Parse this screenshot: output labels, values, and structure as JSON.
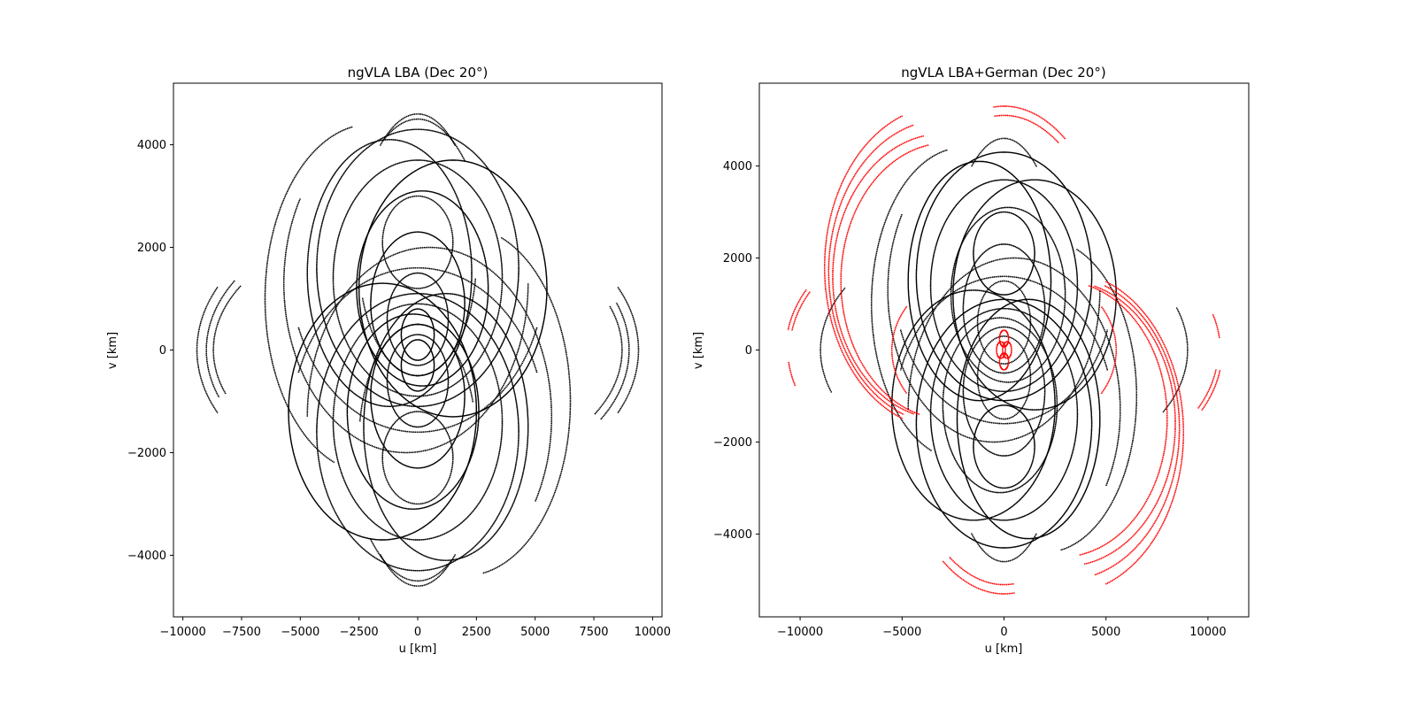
{
  "chart_data": [
    {
      "type": "scatter",
      "title": "ngVLA LBA (Dec 20°)",
      "xlabel": "u [km]",
      "ylabel": "v [km]",
      "xlim": [
        -10400,
        10400
      ],
      "ylim": [
        -5200,
        5200
      ],
      "xticks": [
        -10000,
        -7500,
        -5000,
        -2500,
        0,
        2500,
        5000,
        7500,
        10000
      ],
      "xtick_labels": [
        "−10000",
        "−7500",
        "−5000",
        "−2500",
        "0",
        "2500",
        "5000",
        "7500",
        "10000"
      ],
      "yticks": [
        -4000,
        -2000,
        0,
        2000,
        4000
      ],
      "ytick_labels": [
        "−4000",
        "−2000",
        "0",
        "2000",
        "4000"
      ],
      "grid": false,
      "series": [
        {
          "color": "#000000",
          "tracks": [
            {
              "cx": 0,
              "cy": 1500,
              "a": 5400,
              "b": 3100,
              "t0": 200,
              "t1": 340
            },
            {
              "cx": 0,
              "cy": -1500,
              "a": 5400,
              "b": 3100,
              "t0": 20,
              "t1": 160
            },
            {
              "cx": -500,
              "cy": 1300,
              "a": 5200,
              "b": 3300,
              "t0": 150,
              "t1": 360
            },
            {
              "cx": 500,
              "cy": -1300,
              "a": 5200,
              "b": 3300,
              "t0": -30,
              "t1": 180
            },
            {
              "cx": 0,
              "cy": 1600,
              "a": 4300,
              "b": 2700,
              "t0": 0,
              "t1": 360
            },
            {
              "cx": 0,
              "cy": -1600,
              "a": 4300,
              "b": 2700,
              "t0": 0,
              "t1": 360
            },
            {
              "cx": 0,
              "cy": 1400,
              "a": 3600,
              "b": 2300,
              "t0": 0,
              "t1": 360
            },
            {
              "cx": 0,
              "cy": -1400,
              "a": 3600,
              "b": 2300,
              "t0": 0,
              "t1": 360
            },
            {
              "cx": 200,
              "cy": 1200,
              "a": 2800,
              "b": 1900,
              "t0": 0,
              "t1": 360
            },
            {
              "cx": -200,
              "cy": -1200,
              "a": 2800,
              "b": 1900,
              "t0": 0,
              "t1": 360
            },
            {
              "cx": 0,
              "cy": 900,
              "a": 2000,
              "b": 1400,
              "t0": 0,
              "t1": 360
            },
            {
              "cx": 0,
              "cy": -900,
              "a": 2000,
              "b": 1400,
              "t0": 0,
              "t1": 360
            },
            {
              "cx": 0,
              "cy": 600,
              "a": 1300,
              "b": 900,
              "t0": 0,
              "t1": 360
            },
            {
              "cx": 0,
              "cy": -600,
              "a": 1300,
              "b": 900,
              "t0": 0,
              "t1": 360
            },
            {
              "cx": 0,
              "cy": 300,
              "a": 700,
              "b": 500,
              "t0": 0,
              "t1": 360
            },
            {
              "cx": 0,
              "cy": -300,
              "a": 700,
              "b": 500,
              "t0": 0,
              "t1": 360
            },
            {
              "cx": 1500,
              "cy": 1200,
              "a": 4000,
              "b": 2500,
              "t0": 0,
              "t1": 360
            },
            {
              "cx": -1500,
              "cy": -1200,
              "a": 4000,
              "b": 2500,
              "t0": 0,
              "t1": 360
            },
            {
              "cx": -1200,
              "cy": 1500,
              "a": 3500,
              "b": 2600,
              "t0": 0,
              "t1": 360
            },
            {
              "cx": 1200,
              "cy": -1500,
              "a": 3500,
              "b": 2600,
              "t0": 0,
              "t1": 360
            },
            {
              "cx": 0,
              "cy": 2100,
              "a": 1500,
              "b": 900,
              "t0": 0,
              "t1": 360
            },
            {
              "cx": 0,
              "cy": -2100,
              "a": 1500,
              "b": 900,
              "t0": 0,
              "t1": 360
            },
            {
              "cx": 0,
              "cy": 0,
              "a": 9000,
              "b": 2700,
              "t0": 150,
              "t1": 200
            },
            {
              "cx": 0,
              "cy": 0,
              "a": 9000,
              "b": 2700,
              "t0": -30,
              "t1": 20
            },
            {
              "cx": 0,
              "cy": 0,
              "a": 8700,
              "b": 2500,
              "t0": 150,
              "t1": 200
            },
            {
              "cx": 0,
              "cy": 0,
              "a": 8700,
              "b": 2500,
              "t0": -30,
              "t1": 20
            },
            {
              "cx": 0,
              "cy": 0,
              "a": 9400,
              "b": 2900,
              "t0": 155,
              "t1": 205
            },
            {
              "cx": 0,
              "cy": 0,
              "a": 9400,
              "b": 2900,
              "t0": -25,
              "t1": 25
            },
            {
              "cx": 0,
              "cy": 0,
              "a": 3200,
              "b": 4600,
              "t0": 60,
              "t1": 120
            },
            {
              "cx": 0,
              "cy": 0,
              "a": 3200,
              "b": 4600,
              "t0": 240,
              "t1": 300
            },
            {
              "cx": 0,
              "cy": 0,
              "a": 3500,
              "b": 4500,
              "t0": 55,
              "t1": 115
            },
            {
              "cx": 0,
              "cy": 0,
              "a": 3500,
              "b": 4500,
              "t0": 235,
              "t1": 295
            },
            {
              "cx": -2000,
              "cy": 1000,
              "a": 4500,
              "b": 3400,
              "t0": 100,
              "t1": 250
            },
            {
              "cx": 2000,
              "cy": -1000,
              "a": 4500,
              "b": 3400,
              "t0": 280,
              "t1": 430
            },
            {
              "cx": 0,
              "cy": 1800,
              "a": 2500,
              "b": 2300,
              "t0": 200,
              "t1": 350
            },
            {
              "cx": 0,
              "cy": -1800,
              "a": 2500,
              "b": 2300,
              "t0": 20,
              "t1": 170
            }
          ]
        }
      ]
    },
    {
      "type": "scatter",
      "title": "ngVLA LBA+German (Dec 20°)",
      "xlabel": "u [km]",
      "ylabel": "v [km]",
      "xlim": [
        -12000,
        12000
      ],
      "ylim": [
        -5800,
        5800
      ],
      "xticks": [
        -10000,
        -5000,
        0,
        5000,
        10000
      ],
      "xtick_labels": [
        "−10000",
        "−5000",
        "0",
        "5000",
        "10000"
      ],
      "yticks": [
        -4000,
        -2000,
        0,
        2000,
        4000
      ],
      "ytick_labels": [
        "−4000",
        "−2000",
        "0",
        "2000",
        "4000"
      ],
      "grid": false,
      "series": [
        {
          "color": "#000000",
          "tracks": [
            {
              "cx": 0,
              "cy": 1500,
              "a": 5400,
              "b": 3100,
              "t0": 200,
              "t1": 340
            },
            {
              "cx": 0,
              "cy": -1500,
              "a": 5400,
              "b": 3100,
              "t0": 20,
              "t1": 160
            },
            {
              "cx": -500,
              "cy": 1300,
              "a": 5200,
              "b": 3300,
              "t0": 150,
              "t1": 360
            },
            {
              "cx": 500,
              "cy": -1300,
              "a": 5200,
              "b": 3300,
              "t0": -30,
              "t1": 180
            },
            {
              "cx": 0,
              "cy": 1600,
              "a": 4300,
              "b": 2700,
              "t0": 0,
              "t1": 360
            },
            {
              "cx": 0,
              "cy": -1600,
              "a": 4300,
              "b": 2700,
              "t0": 0,
              "t1": 360
            },
            {
              "cx": 0,
              "cy": 1400,
              "a": 3600,
              "b": 2300,
              "t0": 0,
              "t1": 360
            },
            {
              "cx": 0,
              "cy": -1400,
              "a": 3600,
              "b": 2300,
              "t0": 0,
              "t1": 360
            },
            {
              "cx": 200,
              "cy": 1200,
              "a": 2800,
              "b": 1900,
              "t0": 0,
              "t1": 360
            },
            {
              "cx": -200,
              "cy": -1200,
              "a": 2800,
              "b": 1900,
              "t0": 0,
              "t1": 360
            },
            {
              "cx": 0,
              "cy": 900,
              "a": 2000,
              "b": 1400,
              "t0": 0,
              "t1": 360
            },
            {
              "cx": 0,
              "cy": -900,
              "a": 2000,
              "b": 1400,
              "t0": 0,
              "t1": 360
            },
            {
              "cx": 0,
              "cy": 600,
              "a": 1300,
              "b": 900,
              "t0": 0,
              "t1": 360
            },
            {
              "cx": 0,
              "cy": -600,
              "a": 1300,
              "b": 900,
              "t0": 0,
              "t1": 360
            },
            {
              "cx": 1500,
              "cy": 1200,
              "a": 4000,
              "b": 2500,
              "t0": 0,
              "t1": 360
            },
            {
              "cx": -1500,
              "cy": -1200,
              "a": 4000,
              "b": 2500,
              "t0": 0,
              "t1": 360
            },
            {
              "cx": -1200,
              "cy": 1500,
              "a": 3500,
              "b": 2600,
              "t0": 0,
              "t1": 360
            },
            {
              "cx": 1200,
              "cy": -1500,
              "a": 3500,
              "b": 2600,
              "t0": 0,
              "t1": 360
            },
            {
              "cx": 0,
              "cy": 2100,
              "a": 1500,
              "b": 900,
              "t0": 0,
              "t1": 360
            },
            {
              "cx": 0,
              "cy": -2100,
              "a": 1500,
              "b": 900,
              "t0": 0,
              "t1": 360
            },
            {
              "cx": 0,
              "cy": 0,
              "a": 9000,
              "b": 2700,
              "t0": 150,
              "t1": 200
            },
            {
              "cx": 0,
              "cy": 0,
              "a": 9000,
              "b": 2700,
              "t0": -30,
              "t1": 20
            },
            {
              "cx": 0,
              "cy": 0,
              "a": 3200,
              "b": 4600,
              "t0": 60,
              "t1": 120
            },
            {
              "cx": 0,
              "cy": 0,
              "a": 3200,
              "b": 4600,
              "t0": 240,
              "t1": 300
            },
            {
              "cx": -2000,
              "cy": 1000,
              "a": 4500,
              "b": 3400,
              "t0": 100,
              "t1": 250
            },
            {
              "cx": 2000,
              "cy": -1000,
              "a": 4500,
              "b": 3400,
              "t0": 280,
              "t1": 430
            }
          ]
        },
        {
          "color": "#ff0000",
          "tracks": [
            {
              "cx": -3000,
              "cy": 1800,
              "a": 5800,
              "b": 3500,
              "t0": 110,
              "t1": 250
            },
            {
              "cx": -3000,
              "cy": 1700,
              "a": 5600,
              "b": 3300,
              "t0": 105,
              "t1": 250
            },
            {
              "cx": -3000,
              "cy": 1600,
              "a": 5400,
              "b": 3100,
              "t0": 100,
              "t1": 255
            },
            {
              "cx": -2800,
              "cy": 1500,
              "a": 5200,
              "b": 3000,
              "t0": 100,
              "t1": 255
            },
            {
              "cx": 3000,
              "cy": -1800,
              "a": 5800,
              "b": 3500,
              "t0": 290,
              "t1": 430
            },
            {
              "cx": 3000,
              "cy": -1700,
              "a": 5600,
              "b": 3300,
              "t0": 285,
              "t1": 430
            },
            {
              "cx": 3000,
              "cy": -1600,
              "a": 5400,
              "b": 3100,
              "t0": 280,
              "t1": 435
            },
            {
              "cx": 2800,
              "cy": -1500,
              "a": 5200,
              "b": 3000,
              "t0": 280,
              "t1": 435
            },
            {
              "cx": 0,
              "cy": 0,
              "a": 10700,
              "b": 3100,
              "t0": 155,
              "t1": 172
            },
            {
              "cx": 0,
              "cy": 0,
              "a": 10500,
              "b": 3000,
              "t0": 155,
              "t1": 172
            },
            {
              "cx": 0,
              "cy": 0,
              "a": 10700,
              "b": 3100,
              "t0": -25,
              "t1": -8
            },
            {
              "cx": 0,
              "cy": 0,
              "a": 10500,
              "b": 3000,
              "t0": -25,
              "t1": -8
            },
            {
              "cx": 0,
              "cy": 0,
              "a": 10600,
              "b": 3000,
              "t0": 5,
              "t1": 15
            },
            {
              "cx": 0,
              "cy": 0,
              "a": 10600,
              "b": 3000,
              "t0": 185,
              "t1": 195
            },
            {
              "cx": 0,
              "cy": 0,
              "a": 6000,
              "b": 5300,
              "t0": 60,
              "t1": 95
            },
            {
              "cx": 0,
              "cy": 0,
              "a": 6000,
              "b": 5300,
              "t0": 240,
              "t1": 275
            },
            {
              "cx": 0,
              "cy": 0,
              "a": 5700,
              "b": 5100,
              "t0": 62,
              "t1": 95
            },
            {
              "cx": 0,
              "cy": 0,
              "a": 5700,
              "b": 5100,
              "t0": 242,
              "t1": 275
            },
            {
              "cx": 0,
              "cy": 0,
              "a": 5500,
              "b": 1900,
              "t0": 150,
              "t1": 210
            },
            {
              "cx": 0,
              "cy": 0,
              "a": 5500,
              "b": 1900,
              "t0": -30,
              "t1": 30
            },
            {
              "cx": 0,
              "cy": 250,
              "a": 220,
              "b": 180,
              "t0": 0,
              "t1": 360
            },
            {
              "cx": 0,
              "cy": -250,
              "a": 220,
              "b": 180,
              "t0": 0,
              "t1": 360
            },
            {
              "cx": -150,
              "cy": 0,
              "a": 220,
              "b": 180,
              "t0": 0,
              "t1": 360
            },
            {
              "cx": 150,
              "cy": 0,
              "a": 220,
              "b": 180,
              "t0": 0,
              "t1": 360
            }
          ]
        }
      ]
    }
  ]
}
